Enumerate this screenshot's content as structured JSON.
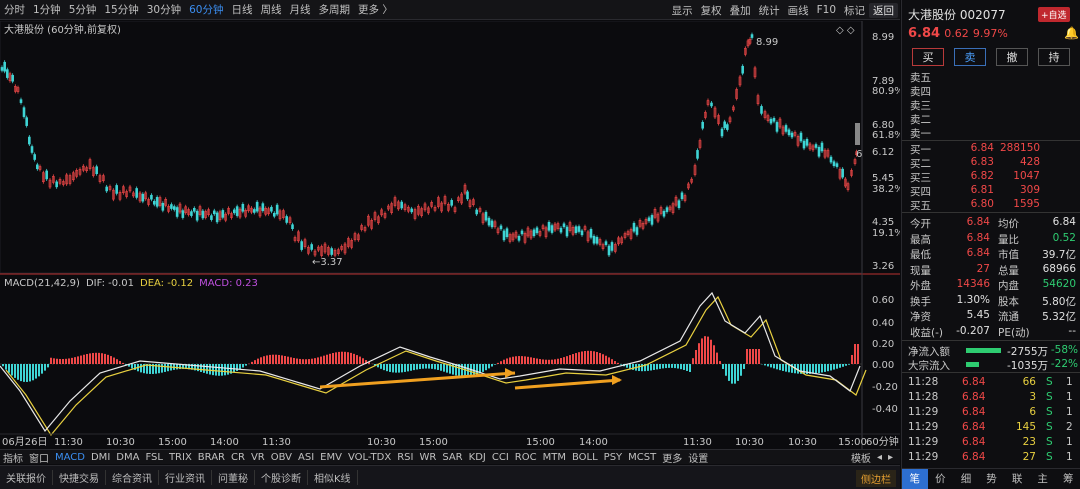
{
  "periods": [
    "分时",
    "1分钟",
    "5分钟",
    "15分钟",
    "30分钟",
    "60分钟",
    "日线",
    "周线",
    "月线",
    "多周期",
    "更多 〉"
  ],
  "active_period": 5,
  "tools": [
    "显示",
    "复权",
    "叠加",
    "统计",
    "画线",
    "F10",
    "标记",
    "返回"
  ],
  "chart_title": "大港股份 (60分钟,前复权)",
  "price_axis": [
    "8.99",
    "7.89",
    "80.9%",
    "6.80",
    "61.8%",
    "6.12",
    "5.45",
    "38.2%",
    "4.35",
    "19.1%",
    "3.26"
  ],
  "high_label": "8.99",
  "low_label": "←3.37",
  "last_marker": "6",
  "macd": {
    "label": "MACD(21,42,9)",
    "dif": "DIF: -0.01",
    "dea": "DEA: -0.12",
    "macd": "MACD: 0.23",
    "axis": [
      "0.60",
      "0.40",
      "0.20",
      "0.00",
      "-0.20",
      "-0.40"
    ]
  },
  "time_axis": [
    "06月26日",
    "11:30",
    "10:30",
    "15:00",
    "14:00",
    "11:30",
    "10:30",
    "15:00",
    "15:00",
    "14:00",
    "11:30",
    "10:30",
    "10:30",
    "15:00"
  ],
  "time_axis_right": "60分钟",
  "indicator_tabs": [
    "指标",
    "窗口",
    "MACD",
    "DMI",
    "DMA",
    "FSL",
    "TRIX",
    "BRAR",
    "CR",
    "VR",
    "OBV",
    "ASI",
    "EMV",
    "VOL-TDX",
    "RSI",
    "WR",
    "SAR",
    "KDJ",
    "CCI",
    "ROC",
    "MTM",
    "BOLL",
    "PSY",
    "MCST",
    "更多",
    "设置"
  ],
  "indicator_active": 2,
  "indicator_right": [
    "模板",
    "◂",
    "▸"
  ],
  "bottom_tabs": [
    "关联报价",
    "快捷交易",
    "综合资讯",
    "行业资讯",
    "问董秘",
    "个股诊断",
    "相似K线"
  ],
  "side_tab": "侧边栏",
  "stock": {
    "name": "大港股份",
    "code": "002077",
    "add_fav": "+自选",
    "price": "6.84",
    "change": "0.62",
    "pct": "9.97%",
    "buttons": [
      "买",
      "卖",
      "撤",
      "持"
    ]
  },
  "sells": [
    "卖五",
    "卖四",
    "卖三",
    "卖二",
    "卖一"
  ],
  "buys": [
    {
      "label": "买一",
      "price": "6.84",
      "vol": "288150"
    },
    {
      "label": "买二",
      "price": "6.83",
      "vol": "428"
    },
    {
      "label": "买三",
      "price": "6.82",
      "vol": "1047"
    },
    {
      "label": "买四",
      "price": "6.81",
      "vol": "309"
    },
    {
      "label": "买五",
      "price": "6.80",
      "vol": "1595"
    }
  ],
  "stats": [
    {
      "k1": "今开",
      "v1": "6.84",
      "k2": "均价",
      "v2": "6.84"
    },
    {
      "k1": "最高",
      "v1": "6.84",
      "k2": "量比",
      "v2": "0.52"
    },
    {
      "k1": "最低",
      "v1": "6.84",
      "k2": "市值",
      "v2": "39.7亿"
    },
    {
      "k1": "现量",
      "v1": "27",
      "k2": "总量",
      "v2": "68966"
    },
    {
      "k1": "外盘",
      "v1": "14346",
      "k2": "内盘",
      "v2": "54620"
    },
    {
      "k1": "换手",
      "v1": "1.30%",
      "k2": "股本",
      "v2": "5.80亿"
    },
    {
      "k1": "净资",
      "v1": "5.45",
      "k2": "流通",
      "v2": "5.32亿"
    },
    {
      "k1": "收益(-)",
      "v1": "-0.207",
      "k2": "PE(动)",
      "v2": "--"
    }
  ],
  "flows": [
    {
      "label": "净流入额",
      "value": "-2755万",
      "pct": "-58%",
      "fill": 0.58
    },
    {
      "label": "大宗流入",
      "value": "-1035万",
      "pct": "-22%",
      "fill": 0.22
    }
  ],
  "ticks": [
    {
      "t": "11:28",
      "p": "6.84",
      "v": "66",
      "d": "S",
      "n": "1"
    },
    {
      "t": "11:28",
      "p": "6.84",
      "v": "3",
      "d": "S",
      "n": "1"
    },
    {
      "t": "11:29",
      "p": "6.84",
      "v": "6",
      "d": "S",
      "n": "1"
    },
    {
      "t": "11:29",
      "p": "6.84",
      "v": "145",
      "d": "S",
      "n": "2"
    },
    {
      "t": "11:29",
      "p": "6.84",
      "v": "23",
      "d": "S",
      "n": "1"
    },
    {
      "t": "11:29",
      "p": "6.84",
      "v": "27",
      "d": "S",
      "n": "1"
    }
  ],
  "panel_tabs": [
    "笔",
    "价",
    "细",
    "势",
    "联",
    "主",
    "筹"
  ],
  "colors": {
    "up": "#f04848",
    "down": "#3fd5d5",
    "dif": "#e8e8e8",
    "dea": "#e8d040",
    "arrow": "#f0a020",
    "active": "#3b8ef0"
  }
}
